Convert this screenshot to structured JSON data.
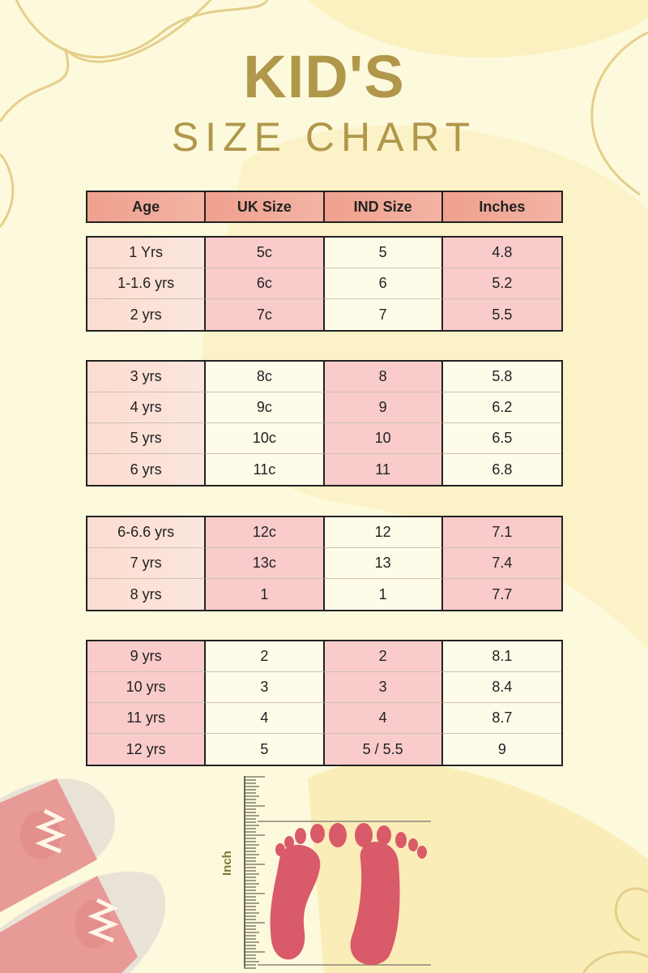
{
  "title": {
    "line1": "KID'S",
    "line2": "SIZE  CHART"
  },
  "table": {
    "headers": [
      "Age",
      "UK Size",
      "IND Size",
      "Inches"
    ],
    "groups": [
      [
        [
          "1 Yrs",
          "5c",
          "5",
          "4.8"
        ],
        [
          "1-1.6 yrs",
          "6c",
          "6",
          "5.2"
        ],
        [
          "2 yrs",
          "7c",
          "7",
          "5.5"
        ]
      ],
      [
        [
          "3 yrs",
          "8c",
          "8",
          "5.8"
        ],
        [
          "4 yrs",
          "9c",
          "9",
          "6.2"
        ],
        [
          "5 yrs",
          "10c",
          "10",
          "6.5"
        ],
        [
          "6 yrs",
          "11c",
          "11",
          "6.8"
        ]
      ],
      [
        [
          "6-6.6 yrs",
          "12c",
          "12",
          "7.1"
        ],
        [
          "7 yrs",
          "13c",
          "13",
          "7.4"
        ],
        [
          "8 yrs",
          "1",
          "1",
          "7.7"
        ]
      ],
      [
        [
          "9 yrs",
          "2",
          "2",
          "8.1"
        ],
        [
          "10 yrs",
          "3",
          "3",
          "8.4"
        ],
        [
          "11 yrs",
          "4",
          "4",
          "8.7"
        ],
        [
          "12 yrs",
          "5",
          "5 / 5.5",
          "9"
        ]
      ]
    ]
  },
  "ruler_label": "Inch",
  "colors": {
    "title": "#b0974a",
    "header": "#f2aa98",
    "pink_cell": "#f9cbcb",
    "foot": "#d95a68",
    "background": "#fdf9dc"
  },
  "illustrations": [
    "sneakers-icon",
    "ruler-icon",
    "footprints-icon"
  ]
}
